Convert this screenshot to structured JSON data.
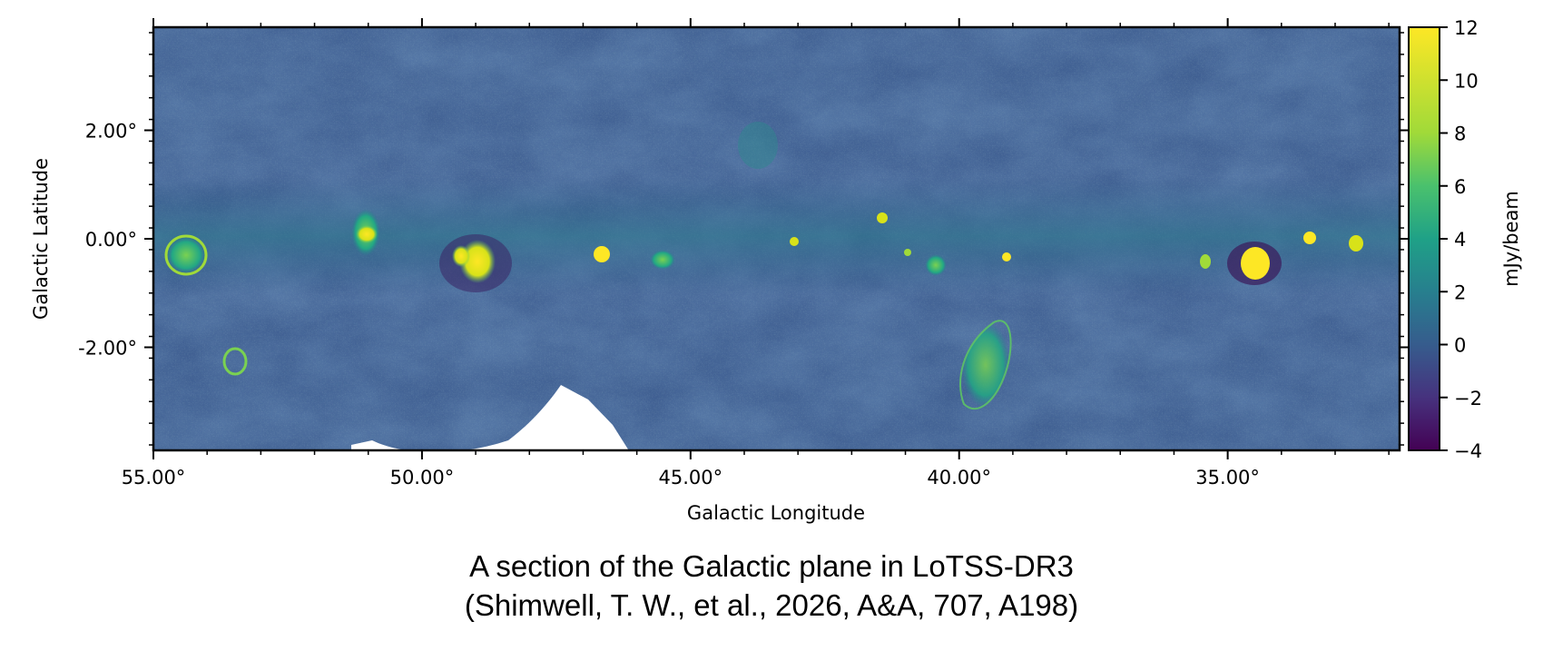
{
  "chart_data": {
    "type": "heatmap",
    "x_axis": {
      "label": "Galactic Longitude",
      "range": [
        55.0,
        31.8
      ],
      "ticks": [
        55.0,
        50.0,
        45.0,
        40.0,
        35.0
      ],
      "tick_labels": [
        "55.00°",
        "50.00°",
        "45.00°",
        "40.00°",
        "35.00°"
      ]
    },
    "y_axis": {
      "label": "Galactic Latitude",
      "range": [
        -3.9,
        3.9
      ],
      "ticks": [
        2.0,
        0.0,
        -2.0
      ],
      "tick_labels": [
        "2.00°",
        "0.00°",
        "-2.00°"
      ]
    },
    "colorbar": {
      "label": "mJy/beam",
      "colormap": "viridis",
      "range": [
        -4,
        12
      ],
      "ticks": [
        12,
        10,
        8,
        6,
        4,
        2,
        0,
        -2,
        -4
      ],
      "tick_labels": [
        "12",
        "10",
        "8",
        "6",
        "4",
        "2",
        "0",
        "−2",
        "−4"
      ]
    },
    "grid": false
  },
  "caption": {
    "line1": "A section of the Galactic plane in LoTSS-DR3",
    "line2": "(Shimwell, T. W., et al., 2026, A&A, 707, A198)"
  },
  "colors": {
    "background_mid": "#3b5a8e",
    "colormap_low": "#440154",
    "colormap_high": "#fde725"
  }
}
